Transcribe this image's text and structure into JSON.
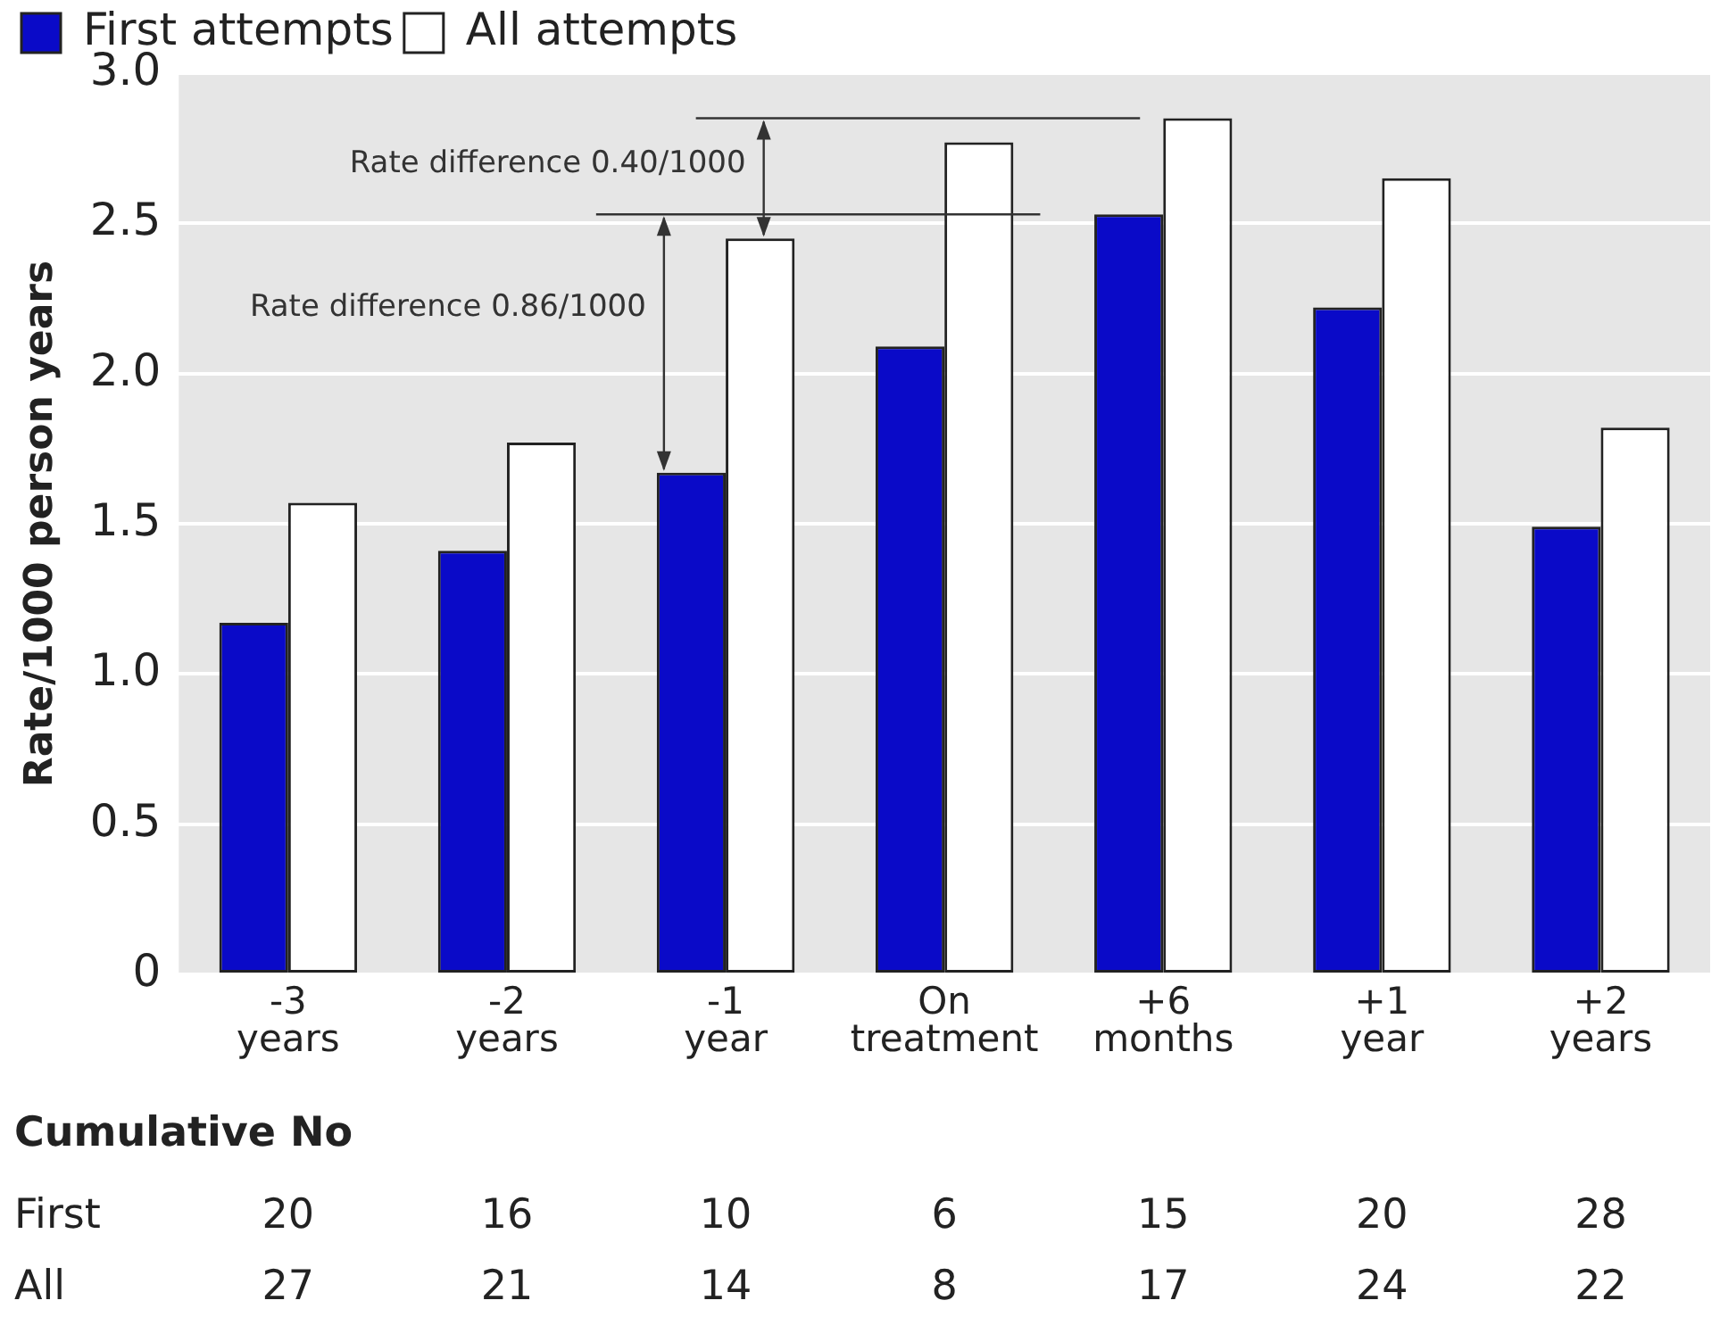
{
  "chart_data": {
    "type": "bar",
    "ylabel": "Rate/1000 person years",
    "categories": [
      "-3 years",
      "-2 years",
      "-1 year",
      "On treatment",
      "+6 months",
      "+1 year",
      "+2 years"
    ],
    "series": [
      {
        "name": "First attempts",
        "color": "#0a0ac8",
        "values": [
          1.17,
          1.41,
          1.67,
          2.09,
          2.53,
          2.22,
          1.49
        ]
      },
      {
        "name": "All attempts",
        "color": "#ffffff",
        "values": [
          1.57,
          1.77,
          2.45,
          2.77,
          2.85,
          2.65,
          1.82
        ]
      }
    ],
    "ylim": [
      0,
      3
    ],
    "yticks": [
      0,
      0.5,
      {
        "value": 1,
        "label": "1.0"
      },
      1.5,
      {
        "value": 2,
        "label": "2.0"
      },
      2.5,
      {
        "value": 3,
        "label": "3.0"
      }
    ],
    "grid": "y",
    "legend": "top left",
    "annotations": [
      "Rate difference 0.86/1000",
      "Rate difference 0.40/1000",
      "Cumulative No",
      "First",
      "20",
      "16",
      "10",
      "6",
      "15",
      "20",
      "28",
      "All",
      "27",
      "21",
      "14",
      "8",
      "17",
      "24",
      "22"
    ]
  }
}
